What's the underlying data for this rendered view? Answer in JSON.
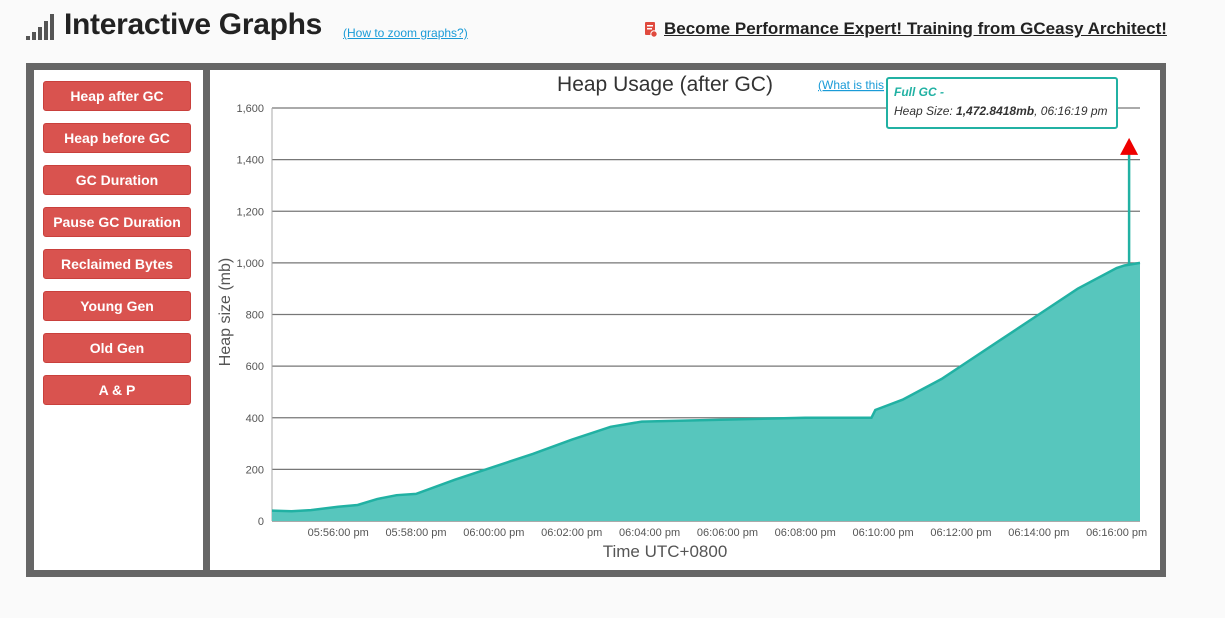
{
  "header": {
    "title": "Interactive Graphs",
    "zoom_link": "(How to zoom graphs?)",
    "promo_text": "Become Performance Expert! Training from GCeasy Architect!"
  },
  "sidebar": {
    "buttons": [
      {
        "label": "Heap after GC"
      },
      {
        "label": "Heap before GC"
      },
      {
        "label": "GC Duration"
      },
      {
        "label": "Pause GC Duration"
      },
      {
        "label": "Reclaimed Bytes"
      },
      {
        "label": "Young Gen"
      },
      {
        "label": "Old Gen"
      },
      {
        "label": "A & P"
      }
    ]
  },
  "chart": {
    "what_is_link": "(What is this",
    "tooltip": {
      "title": "Full GC -",
      "prefix": "Heap Size: ",
      "value": "1,472.8418mb",
      "suffix": ", 06:16:19 pm"
    }
  },
  "colors": {
    "area": "#57c6bd",
    "line": "#21b1a3",
    "button": "#d9534f",
    "arrow": "#ee0000"
  },
  "chart_data": {
    "type": "area",
    "title": "Heap Usage (after GC)",
    "xlabel": "Time UTC+0800",
    "ylabel": "Heap size (mb)",
    "ylim": [
      0,
      1600
    ],
    "yticks": [
      "0",
      "200",
      "400",
      "600",
      "800",
      "1,000",
      "1,200",
      "1,400",
      "1,600"
    ],
    "xticks": [
      "05:56:00 pm",
      "05:58:00 pm",
      "06:00:00 pm",
      "06:02:00 pm",
      "06:04:00 pm",
      "06:06:00 pm",
      "06:08:00 pm",
      "06:10:00 pm",
      "06:12:00 pm",
      "06:14:00 pm",
      "06:16:00 pm"
    ],
    "xlim_minutes": [
      -1.7,
      20.6
    ],
    "grid": true,
    "series": [
      {
        "x_minutes": [
          -1.7,
          -1.2,
          -0.7,
          0,
          0.5,
          1.0,
          1.5,
          2.0,
          3.0,
          4.0,
          5.0,
          6.0,
          7.0,
          7.8,
          12.0,
          13.7,
          13.8,
          14.5,
          15.0,
          15.5,
          16.0,
          17.0,
          18.0,
          19.0,
          20.0,
          20.2,
          20.6
        ],
        "values": [
          40,
          38,
          42,
          55,
          62,
          85,
          100,
          105,
          160,
          210,
          260,
          315,
          365,
          385,
          400,
          400,
          430,
          470,
          510,
          550,
          600,
          700,
          800,
          900,
          980,
          990,
          1000
        ]
      }
    ],
    "annotation": {
      "x_minutes": 20.32,
      "value": 1472.8418,
      "label": "Full GC"
    }
  }
}
